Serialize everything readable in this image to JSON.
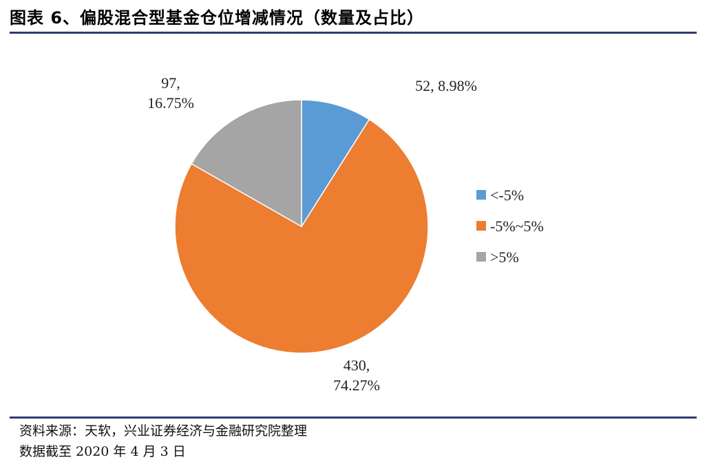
{
  "header": {
    "title": "图表 6、偏股混合型基金仓位增减情况（数量及占比）"
  },
  "footer": {
    "source": "资料来源：天软，兴业证券经济与金融研究院整理",
    "date_note": "数据截至 2020 年 4 月 3 日"
  },
  "colors": {
    "rule": "#2f3a6b",
    "series": [
      "#5b9bd5",
      "#ed7d31",
      "#a5a5a5"
    ]
  },
  "chart_data": {
    "type": "pie",
    "categories": [
      "<-5%",
      "-5%~5%",
      ">5%"
    ],
    "values": [
      52,
      430,
      97
    ],
    "percentages": [
      "8.98%",
      "74.27%",
      "16.75%"
    ],
    "data_labels": [
      [
        "52, 8.98%"
      ],
      [
        "430,",
        "74.27%"
      ],
      [
        "97,",
        "16.75%"
      ]
    ],
    "legend_position": "right",
    "start_angle_deg": 0,
    "direction": "clockwise"
  }
}
